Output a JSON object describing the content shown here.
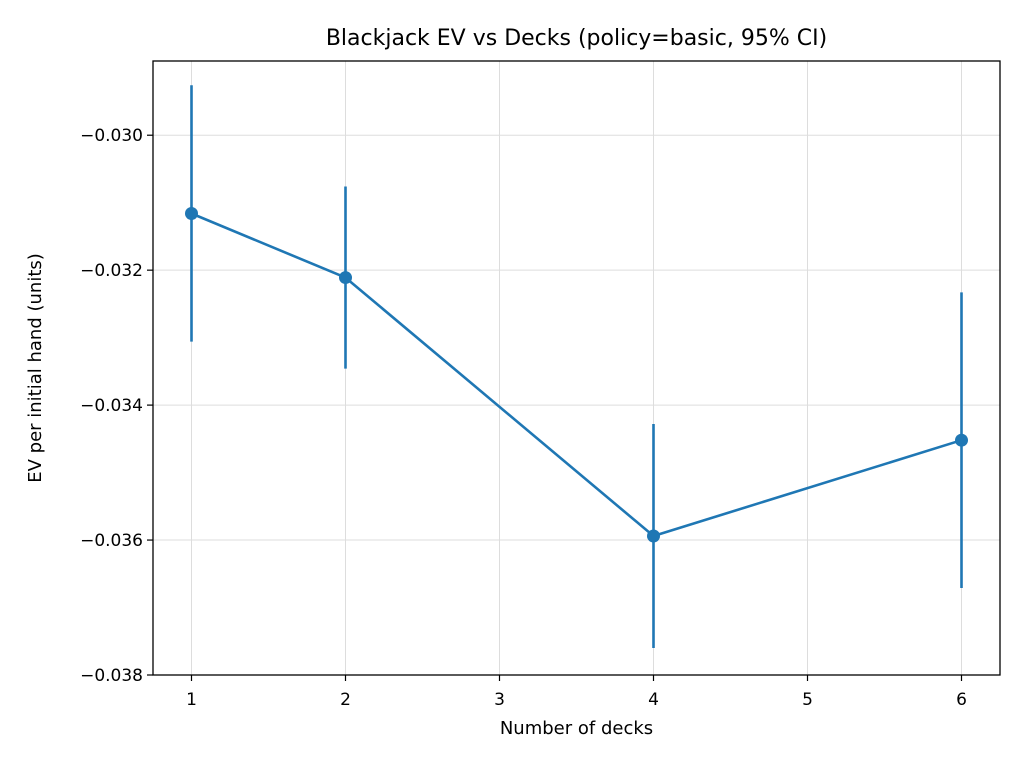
{
  "chart_data": {
    "type": "line",
    "title": "Blackjack EV vs Decks (policy=basic, 95% CI)",
    "xlabel": "Number of decks",
    "ylabel": "EV per initial hand (units)",
    "xlim": [
      0.75,
      6.25
    ],
    "ylim": [
      -0.038,
      -0.0289
    ],
    "xticks": [
      1,
      2,
      3,
      4,
      5,
      6
    ],
    "xtick_labels": [
      "1",
      "2",
      "3",
      "4",
      "5",
      "6"
    ],
    "yticks": [
      -0.03,
      -0.032,
      -0.034,
      -0.036,
      -0.038
    ],
    "ytick_labels": [
      "−0.030",
      "−0.032",
      "−0.034",
      "−0.036",
      "−0.038"
    ],
    "grid": true,
    "series": [
      {
        "color": "#1f77b4",
        "marker": "circle",
        "x": [
          1,
          2,
          4,
          6
        ],
        "y": [
          -0.03116,
          -0.03211,
          -0.03594,
          -0.03452
        ],
        "ci_low": [
          -0.03306,
          -0.03346,
          -0.0376,
          -0.03671
        ],
        "ci_high": [
          -0.02926,
          -0.03076,
          -0.03428,
          -0.03233
        ]
      }
    ]
  }
}
